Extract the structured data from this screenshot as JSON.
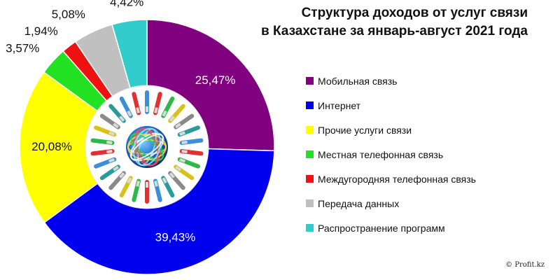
{
  "chart_data": {
    "type": "pie",
    "variant": "donut",
    "title_lines": [
      "Структура доходов от услуг связи",
      "в Казахстане за январь-август 2021 года"
    ],
    "legend_position": "right",
    "slices": [
      {
        "name": "Мобильная связь",
        "value": 25.47,
        "label": "25,47%",
        "color": "#800080"
      },
      {
        "name": "Интернет",
        "value": 39.43,
        "label": "39,43%",
        "color": "#0000ee"
      },
      {
        "name": "Прочие услуги связи",
        "value": 20.08,
        "label": "20,08%",
        "color": "#ffff00"
      },
      {
        "name": "Местная телефонная связь",
        "value": 3.57,
        "label": "3,57%",
        "color": "#22e022"
      },
      {
        "name": "Междугородняя телефонная связь",
        "value": 1.94,
        "label": "1,94%",
        "color": "#ee1111"
      },
      {
        "name": "Передача данных",
        "value": 5.08,
        "label": "5,08%",
        "color": "#c0c0c0"
      },
      {
        "name": "Распространение программ",
        "value": 4.42,
        "label": "4,42%",
        "color": "#33cccc"
      }
    ]
  },
  "footer": {
    "copyright": "© Profit.kz"
  }
}
